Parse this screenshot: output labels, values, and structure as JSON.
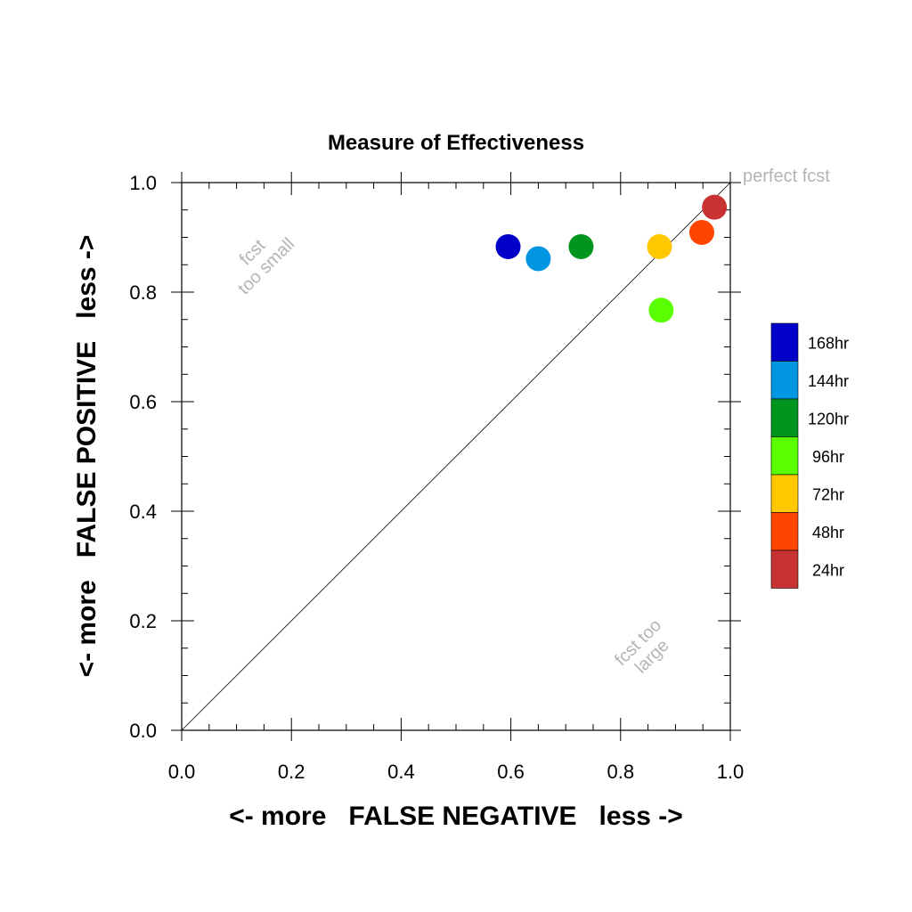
{
  "chart_data": {
    "type": "scatter",
    "title": "Measure of Effectiveness",
    "xlabel": "<- more   FALSE NEGATIVE   less ->",
    "ylabel": "<- more   FALSE POSITIVE   less ->",
    "xlim": [
      0,
      1
    ],
    "ylim": [
      0,
      1
    ],
    "xticks": [
      "0.0",
      "0.2",
      "0.4",
      "0.6",
      "0.8",
      "1.0"
    ],
    "yticks": [
      "0.0",
      "0.2",
      "0.4",
      "0.6",
      "0.8",
      "1.0"
    ],
    "grid": false,
    "diagonal_line": true,
    "annotations": {
      "perfect": "perfect fcst",
      "too_small": [
        "fcst",
        "too small"
      ],
      "too_large": [
        "fcst too",
        "large"
      ]
    },
    "legend_position": "right",
    "series": [
      {
        "name": "168hr",
        "color": "#0000c8",
        "x": 0.595,
        "y": 0.883
      },
      {
        "name": "144hr",
        "color": "#0096e1",
        "x": 0.65,
        "y": 0.861
      },
      {
        "name": "120hr",
        "color": "#00961e",
        "x": 0.728,
        "y": 0.883
      },
      {
        "name": "96hr",
        "color": "#5aff00",
        "x": 0.874,
        "y": 0.767
      },
      {
        "name": "72hr",
        "color": "#ffc800",
        "x": 0.871,
        "y": 0.883
      },
      {
        "name": "48hr",
        "color": "#ff4600",
        "x": 0.948,
        "y": 0.909
      },
      {
        "name": "24hr",
        "color": "#c83232",
        "x": 0.971,
        "y": 0.955
      }
    ]
  }
}
